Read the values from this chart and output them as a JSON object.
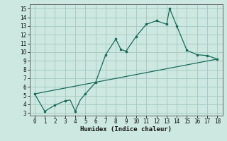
{
  "xlabel": "Humidex (Indice chaleur)",
  "bg_color": "#cce8e0",
  "grid_color": "#aaccC4",
  "line_color": "#1a6b5a",
  "line1_x": [
    0,
    1,
    2,
    3,
    3.5,
    4,
    4.5,
    5,
    6,
    7,
    8,
    8.5,
    9,
    10,
    11,
    12,
    13,
    13.3,
    14,
    15,
    16,
    17,
    18
  ],
  "line1_y": [
    5.2,
    3.2,
    3.9,
    4.4,
    4.5,
    3.2,
    4.5,
    5.2,
    6.5,
    9.7,
    11.5,
    10.3,
    10.1,
    11.8,
    13.2,
    13.6,
    13.2,
    15.0,
    13.0,
    10.2,
    9.7,
    9.6,
    9.2
  ],
  "line2_x": [
    0,
    18
  ],
  "line2_y": [
    5.2,
    9.2
  ],
  "marker_x": [
    0,
    1,
    2,
    3,
    4,
    5,
    6,
    7,
    8,
    8.5,
    9,
    10,
    11,
    12,
    13,
    13.3,
    14,
    15,
    16,
    17,
    18
  ],
  "marker_y": [
    5.2,
    3.2,
    3.9,
    4.4,
    3.2,
    5.2,
    6.5,
    9.7,
    11.5,
    10.3,
    10.1,
    11.8,
    13.2,
    13.6,
    13.2,
    15.0,
    13.0,
    10.2,
    9.7,
    9.6,
    9.2
  ],
  "xlim": [
    -0.5,
    18.5
  ],
  "ylim": [
    2.7,
    15.5
  ],
  "xticks": [
    0,
    1,
    2,
    3,
    4,
    5,
    6,
    7,
    8,
    9,
    10,
    11,
    12,
    13,
    14,
    15,
    16,
    17,
    18
  ],
  "yticks": [
    3,
    4,
    5,
    6,
    7,
    8,
    9,
    10,
    11,
    12,
    13,
    14,
    15
  ]
}
